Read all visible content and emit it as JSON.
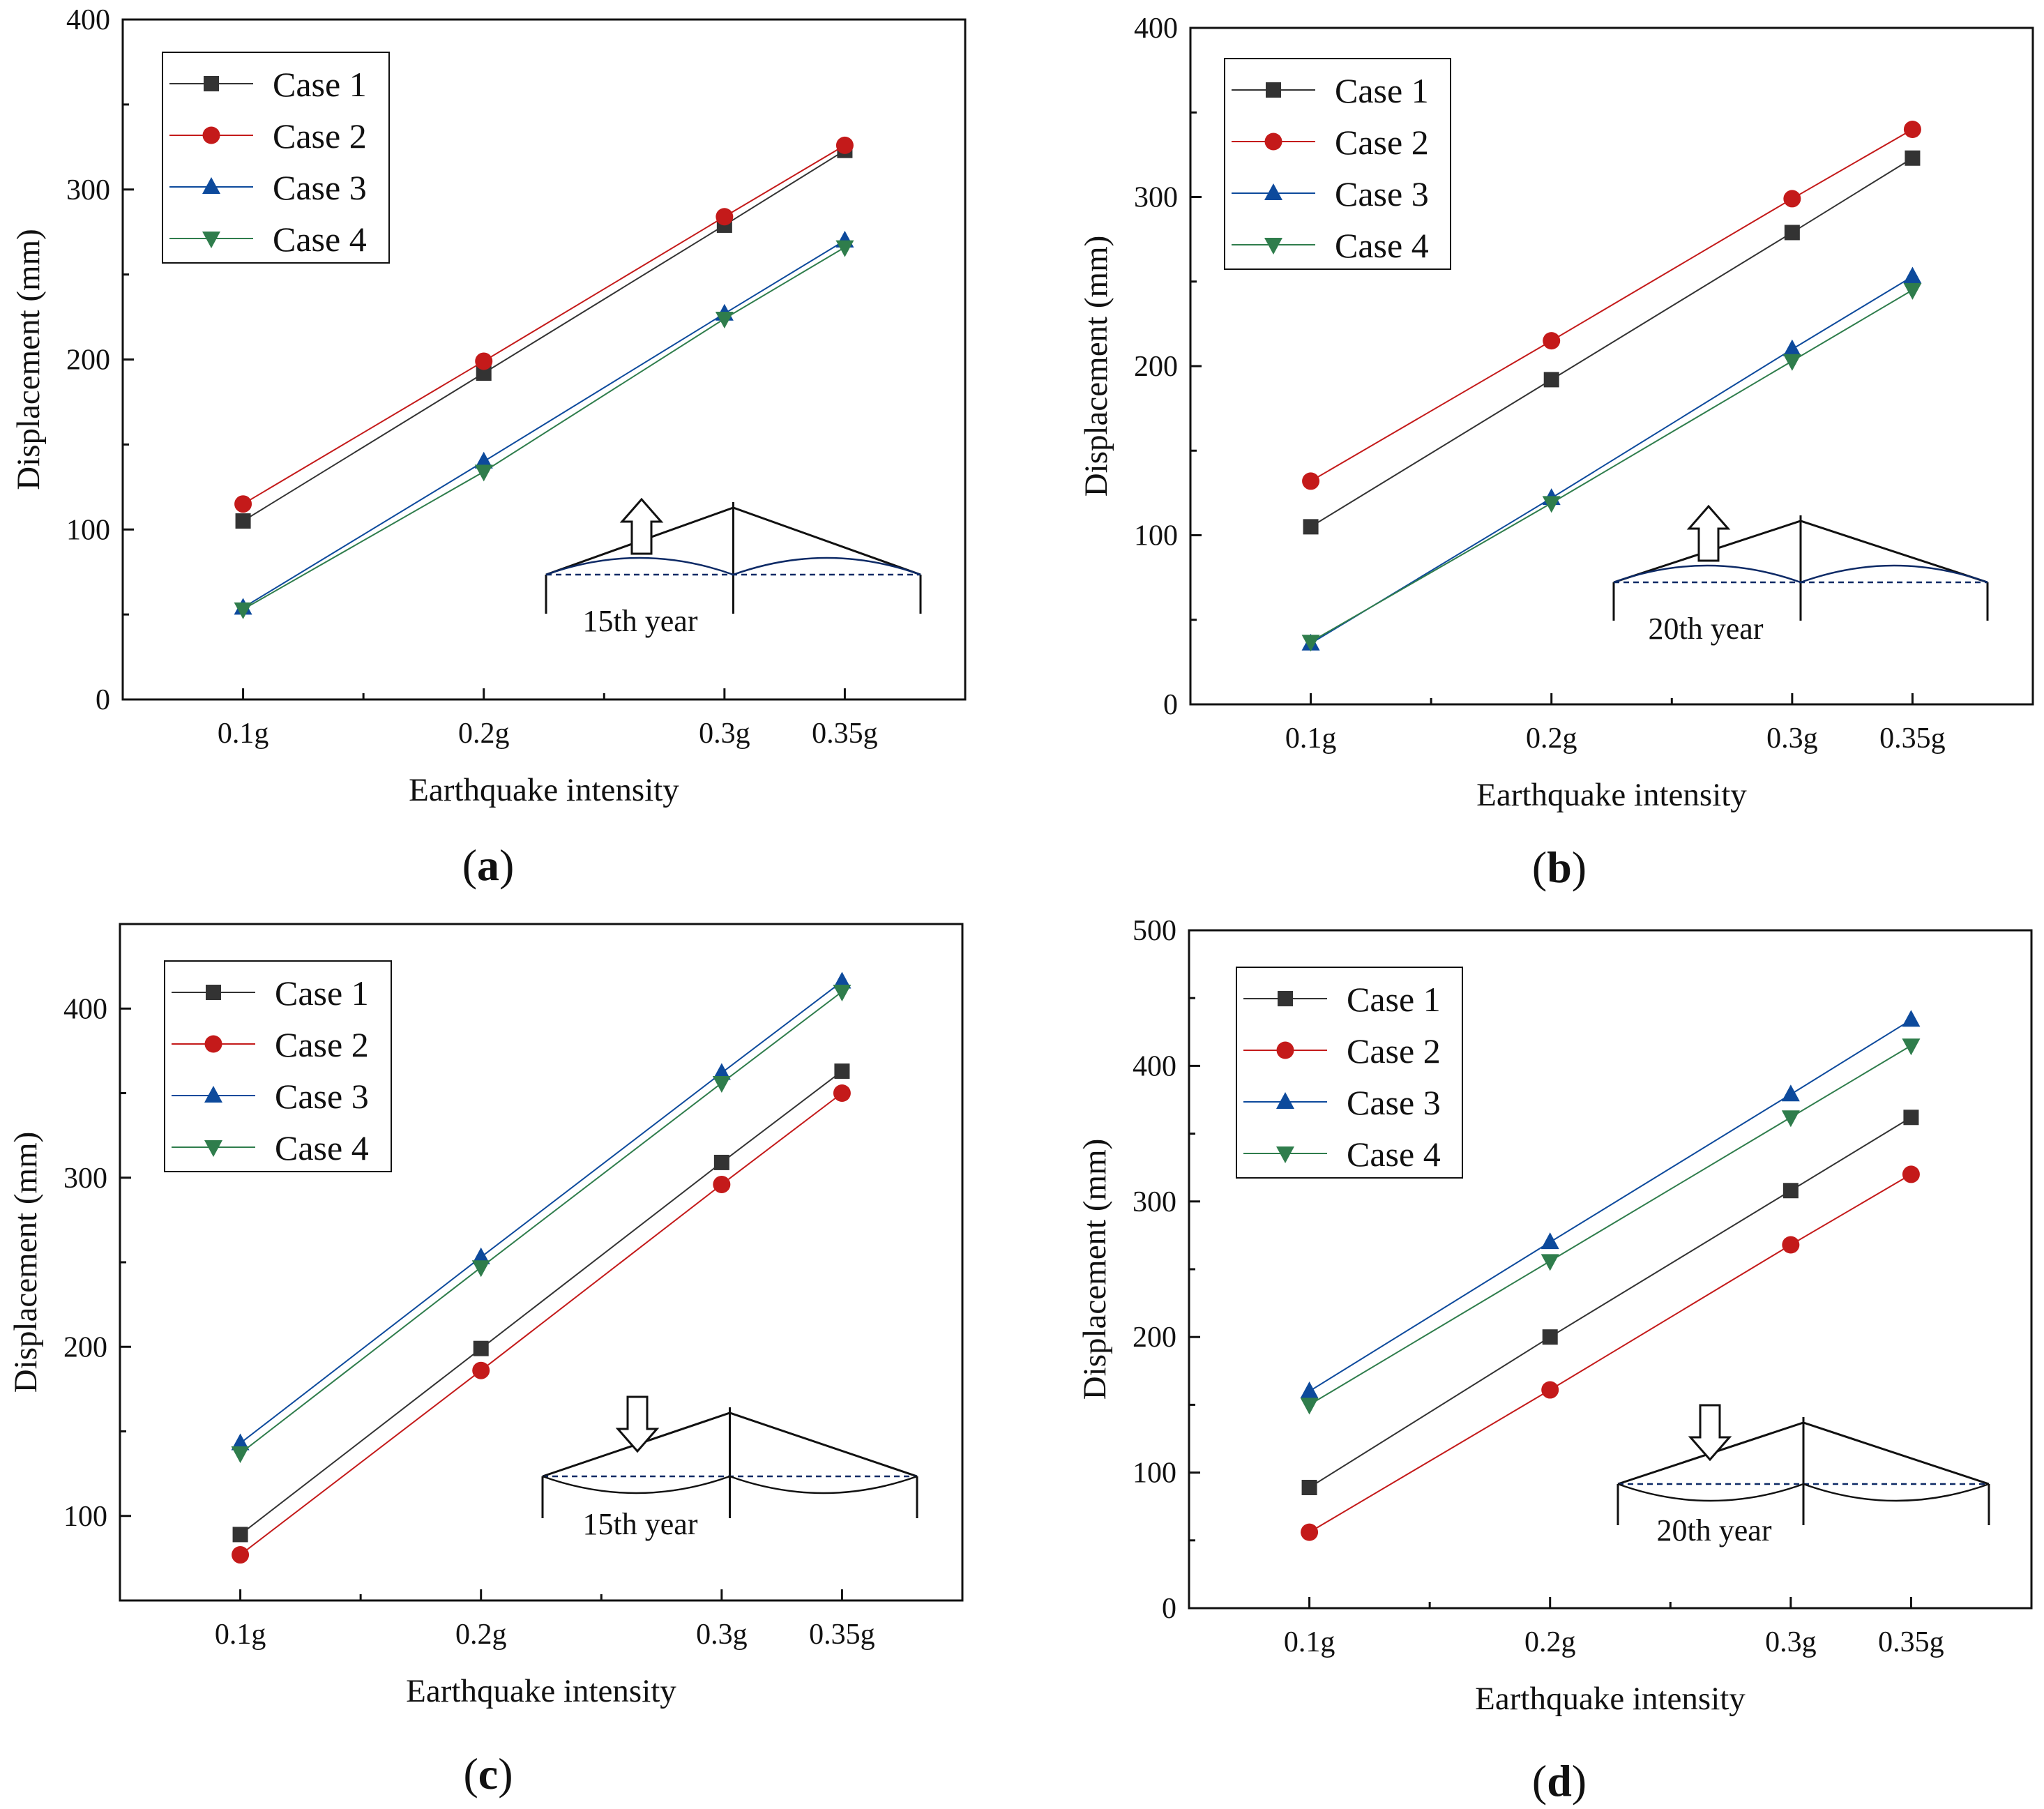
{
  "colors": {
    "Case 1": "#333333",
    "Case 2": "#c41a1a",
    "Case 3": "#0d4a9c",
    "Case 4": "#2f7d4c",
    "axis": "#111111"
  },
  "chart_data": [
    {
      "panel": "a",
      "type": "line",
      "categories": [
        "0.1g",
        "0.2g",
        "0.3g",
        "0.35g"
      ],
      "x": [
        0.1,
        0.2,
        0.3,
        0.35
      ],
      "xlim": [
        0.05,
        0.4
      ],
      "xlabel": "Earthquake intensity",
      "ylabel": "Displacement (mm)",
      "ylim": [
        0,
        400
      ],
      "yticks": [
        0,
        100,
        200,
        300,
        400
      ],
      "legend_position": "top-left",
      "series": [
        {
          "name": "Case 1",
          "marker": "square",
          "values": [
            105,
            192,
            279,
            323
          ]
        },
        {
          "name": "Case 2",
          "marker": "circle",
          "values": [
            115,
            199,
            284,
            326
          ]
        },
        {
          "name": "Case 3",
          "marker": "triangle-up",
          "values": [
            54,
            140,
            227,
            270
          ]
        },
        {
          "name": "Case 4",
          "marker": "triangle-down",
          "values": [
            53,
            134,
            224,
            266
          ]
        }
      ],
      "inset": {
        "label": "15th year",
        "arrow": "up"
      }
    },
    {
      "panel": "b",
      "type": "line",
      "categories": [
        "0.1g",
        "0.2g",
        "0.3g",
        "0.35g"
      ],
      "x": [
        0.1,
        0.2,
        0.3,
        0.35
      ],
      "xlim": [
        0.05,
        0.4
      ],
      "xlabel": "Earthquake intensity",
      "ylabel": "Displacement (mm)",
      "ylim": [
        0,
        400
      ],
      "yticks": [
        0,
        100,
        200,
        300,
        400
      ],
      "legend_position": "top-left",
      "series": [
        {
          "name": "Case 1",
          "marker": "square",
          "values": [
            105,
            192,
            279,
            323
          ]
        },
        {
          "name": "Case 2",
          "marker": "circle",
          "values": [
            132,
            215,
            299,
            340
          ]
        },
        {
          "name": "Case 3",
          "marker": "triangle-up",
          "values": [
            36,
            122,
            210,
            253
          ]
        },
        {
          "name": "Case 4",
          "marker": "triangle-down",
          "values": [
            37,
            119,
            203,
            245
          ]
        }
      ],
      "inset": {
        "label": "20th year",
        "arrow": "up"
      }
    },
    {
      "panel": "c",
      "type": "line",
      "categories": [
        "0.1g",
        "0.2g",
        "0.3g",
        "0.35g"
      ],
      "x": [
        0.1,
        0.2,
        0.3,
        0.35
      ],
      "xlim": [
        0.05,
        0.4
      ],
      "xlabel": "Earthquake intensity",
      "ylabel": "Displacement (mm)",
      "ylim": [
        50,
        450
      ],
      "yticks": [
        100,
        200,
        300,
        400
      ],
      "legend_position": "top-left",
      "series": [
        {
          "name": "Case 1",
          "marker": "square",
          "values": [
            89,
            199,
            309,
            363
          ]
        },
        {
          "name": "Case 2",
          "marker": "circle",
          "values": [
            77,
            186,
            296,
            350
          ]
        },
        {
          "name": "Case 3",
          "marker": "triangle-up",
          "values": [
            143,
            253,
            362,
            416
          ]
        },
        {
          "name": "Case 4",
          "marker": "triangle-down",
          "values": [
            137,
            247,
            356,
            410
          ]
        }
      ],
      "inset": {
        "label": "15th year",
        "arrow": "down"
      }
    },
    {
      "panel": "d",
      "type": "line",
      "categories": [
        "0.1g",
        "0.2g",
        "0.3g",
        "0.35g"
      ],
      "x": [
        0.1,
        0.2,
        0.3,
        0.35
      ],
      "xlim": [
        0.05,
        0.4
      ],
      "xlabel": "Earthquake intensity",
      "ylabel": "Displacement (mm)",
      "ylim": [
        0,
        500
      ],
      "yticks": [
        0,
        100,
        200,
        300,
        400,
        500
      ],
      "legend_position": "top-left",
      "series": [
        {
          "name": "Case 1",
          "marker": "square",
          "values": [
            89,
            200,
            308,
            362
          ]
        },
        {
          "name": "Case 2",
          "marker": "circle",
          "values": [
            56,
            161,
            268,
            320
          ]
        },
        {
          "name": "Case 3",
          "marker": "triangle-up",
          "values": [
            160,
            270,
            379,
            434
          ]
        },
        {
          "name": "Case 4",
          "marker": "triangle-down",
          "values": [
            150,
            256,
            362,
            415
          ]
        }
      ],
      "inset": {
        "label": "20th year",
        "arrow": "down"
      }
    }
  ]
}
